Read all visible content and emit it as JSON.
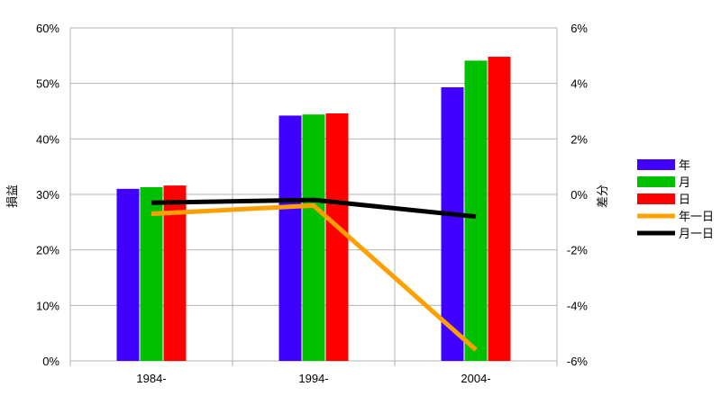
{
  "chart_data": {
    "type": "bar",
    "categories": [
      "1984-",
      "1994-",
      "2004-"
    ],
    "ylabel": "損益",
    "y2label": "差分",
    "ylim": [
      0,
      60
    ],
    "y2lim": [
      -6,
      6
    ],
    "yticks": [
      "0%",
      "10%",
      "20%",
      "30%",
      "40%",
      "50%",
      "60%"
    ],
    "y2ticks": [
      "-6%",
      "-4%",
      "-2%",
      "0%",
      "2%",
      "4%",
      "6%"
    ],
    "grid": true,
    "legend_position": "right",
    "series": [
      {
        "name": "年",
        "kind": "bar",
        "axis": "left",
        "color": "#3f00ff",
        "values": [
          31.0,
          44.2,
          49.3
        ]
      },
      {
        "name": "月",
        "kind": "bar",
        "axis": "left",
        "color": "#00c000",
        "values": [
          31.3,
          44.4,
          54.1
        ]
      },
      {
        "name": "日",
        "kind": "bar",
        "axis": "left",
        "color": "#ff0000",
        "values": [
          31.6,
          44.6,
          54.8
        ]
      },
      {
        "name": "年一日",
        "kind": "line",
        "axis": "right",
        "color": "#ffa000",
        "values": [
          -0.7,
          -0.4,
          -5.6
        ]
      },
      {
        "name": "月一日",
        "kind": "line",
        "axis": "right",
        "color": "#000000",
        "values": [
          -0.3,
          -0.2,
          -0.8
        ]
      }
    ]
  }
}
